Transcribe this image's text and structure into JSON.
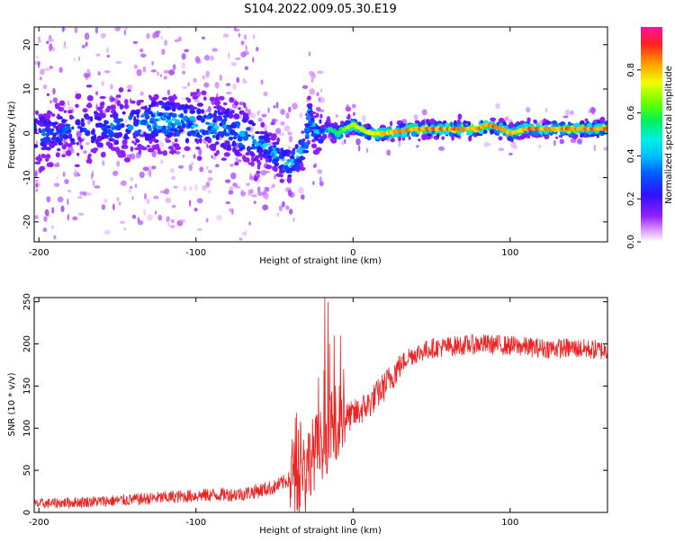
{
  "title": "S104.2022.009.05.30.E19",
  "colors": {
    "snr_line": "#ee2222",
    "colormap": [
      "#ffffff",
      "#c040ff",
      "#6010e0",
      "#2020ff",
      "#00a0ff",
      "#00f0f0",
      "#00e060",
      "#60ff00",
      "#ffff00",
      "#ffa000",
      "#ff2020",
      "#ff20a0"
    ]
  },
  "chart_data": [
    {
      "type": "heatmap",
      "name": "spectrogram",
      "xlabel": "Height of straight line (km)",
      "ylabel": "Frequency (Hz)",
      "xlim": [
        -203,
        162
      ],
      "ylim": [
        -24.5,
        24
      ],
      "xticks": [
        -200,
        -100,
        0,
        100
      ],
      "xtick_labels": [
        "-200",
        "-100",
        "0",
        "100"
      ],
      "yticks": [
        -20,
        -10,
        0,
        10,
        20
      ],
      "ytick_labels": [
        "-20",
        "-10",
        "0",
        "10",
        "20"
      ],
      "colorbar": {
        "label": "Normalized spectral amplitude",
        "range": [
          0,
          1
        ],
        "ticks": [
          0.0,
          0.2,
          0.4,
          0.6,
          0.8
        ],
        "tick_labels": [
          "0.0",
          "0.2",
          "0.4",
          "0.6",
          "0.8"
        ]
      },
      "ridge": {
        "x": [
          -200,
          -170,
          -140,
          -120,
          -100,
          -80,
          -65,
          -55,
          -45,
          -40,
          -35,
          -30,
          -28,
          -25,
          -20,
          -15,
          -10,
          -5,
          0,
          5,
          10,
          20,
          40,
          60,
          80,
          85,
          95,
          100,
          110,
          130,
          160
        ],
        "y": [
          0,
          1,
          2,
          3,
          2,
          1,
          -1,
          -3,
          -6,
          -7,
          -5,
          -3,
          5,
          1,
          0,
          1,
          0,
          1,
          2,
          1,
          0,
          0,
          1,
          1,
          1,
          2,
          1,
          0,
          1,
          1,
          1
        ],
        "peak_amplitude": [
          0.35,
          0.35,
          0.4,
          0.5,
          0.45,
          0.45,
          0.45,
          0.5,
          0.55,
          0.55,
          0.5,
          0.5,
          0.4,
          0.45,
          0.5,
          0.55,
          0.6,
          0.7,
          0.75,
          0.8,
          0.8,
          0.85,
          0.9,
          0.9,
          0.9,
          0.92,
          0.9,
          0.85,
          0.9,
          0.9,
          0.9
        ]
      }
    },
    {
      "type": "line",
      "name": "snr",
      "xlabel": "Height of straight line (km)",
      "ylabel": "SNR (10 * v/v)",
      "xlim": [
        -203,
        162
      ],
      "ylim": [
        0,
        255
      ],
      "xticks": [
        -200,
        -100,
        0,
        100
      ],
      "xtick_labels": [
        "-200",
        "-100",
        "0",
        "100"
      ],
      "yticks": [
        0,
        50,
        100,
        150,
        200,
        250
      ],
      "ytick_labels": [
        "0",
        "50",
        "100",
        "150",
        "200",
        "250"
      ],
      "trend": {
        "x": [
          -203,
          -150,
          -100,
          -70,
          -50,
          -35,
          -25,
          -15,
          -10,
          0,
          10,
          20,
          28,
          35,
          50,
          80,
          100,
          120,
          140,
          162
        ],
        "y": [
          10,
          14,
          20,
          22,
          30,
          45,
          70,
          95,
          110,
          115,
          128,
          150,
          170,
          185,
          195,
          200,
          198,
          195,
          195,
          192
        ]
      },
      "notable_spikes": {
        "x": [
          -18,
          -16,
          -15,
          -12,
          -8,
          -22
        ],
        "y": [
          255,
          250,
          200,
          210,
          210,
          160
        ]
      }
    }
  ]
}
